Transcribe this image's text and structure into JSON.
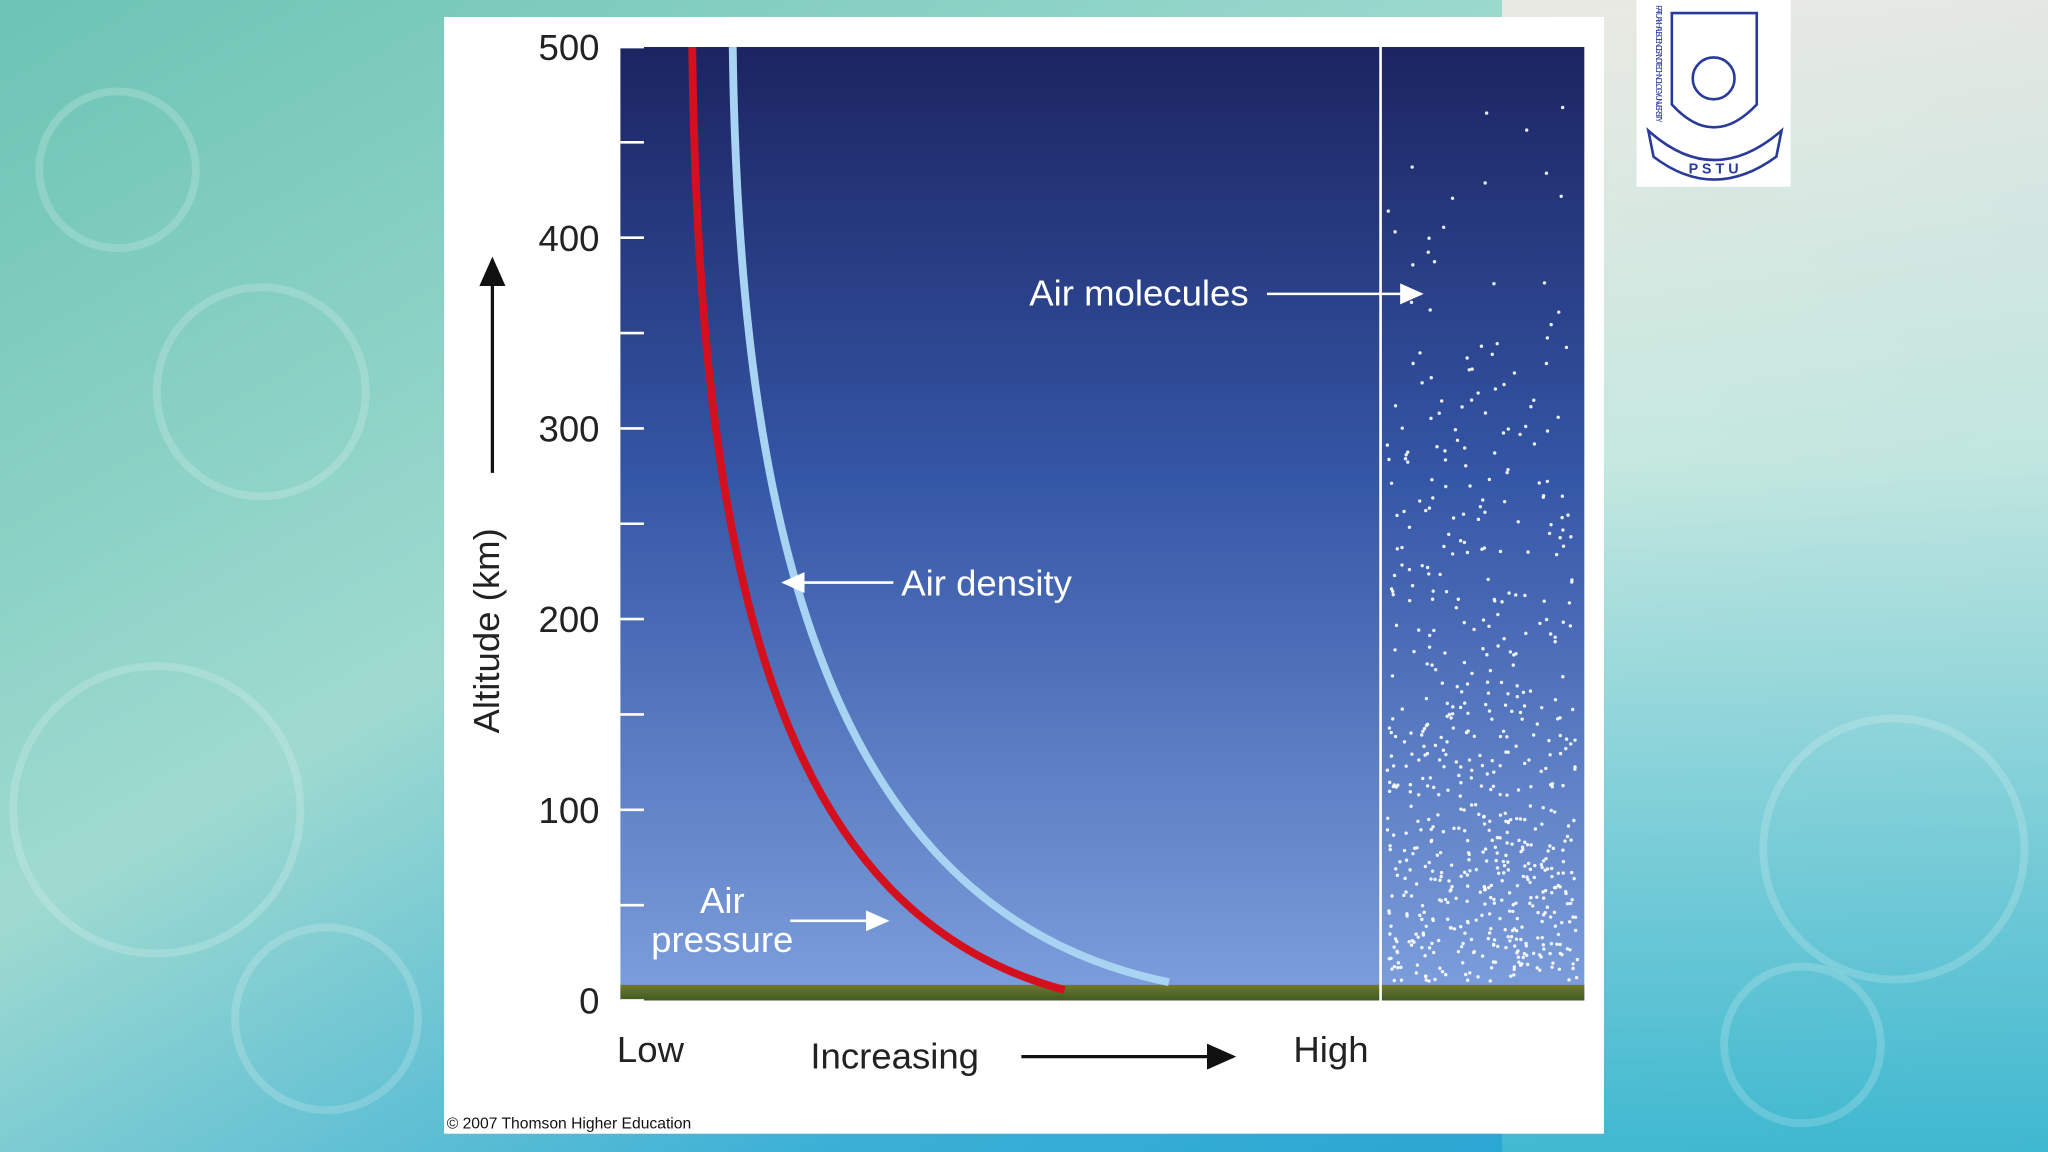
{
  "slide": {
    "chart": {
      "y_axis_title": "Altitude (km)",
      "ylim": [
        0,
        500
      ],
      "yticks": [
        0,
        100,
        200,
        300,
        400,
        500
      ],
      "minor_yticks": [
        50,
        150,
        250,
        350,
        450
      ],
      "x_labels": {
        "low": "Low",
        "middle": "Increasing",
        "high": "High"
      },
      "annotations": {
        "air_molecules": "Air molecules",
        "air_density": "Air density",
        "air_pressure": [
          "Air",
          "pressure"
        ]
      }
    },
    "credit": "© 2007 Thomson Higher Education",
    "logo": {
      "name": "PATUAKHALI SCIENCE AND TECHNOLOGY UNIVERSITY",
      "abbreviation": "P S T U"
    }
  }
}
